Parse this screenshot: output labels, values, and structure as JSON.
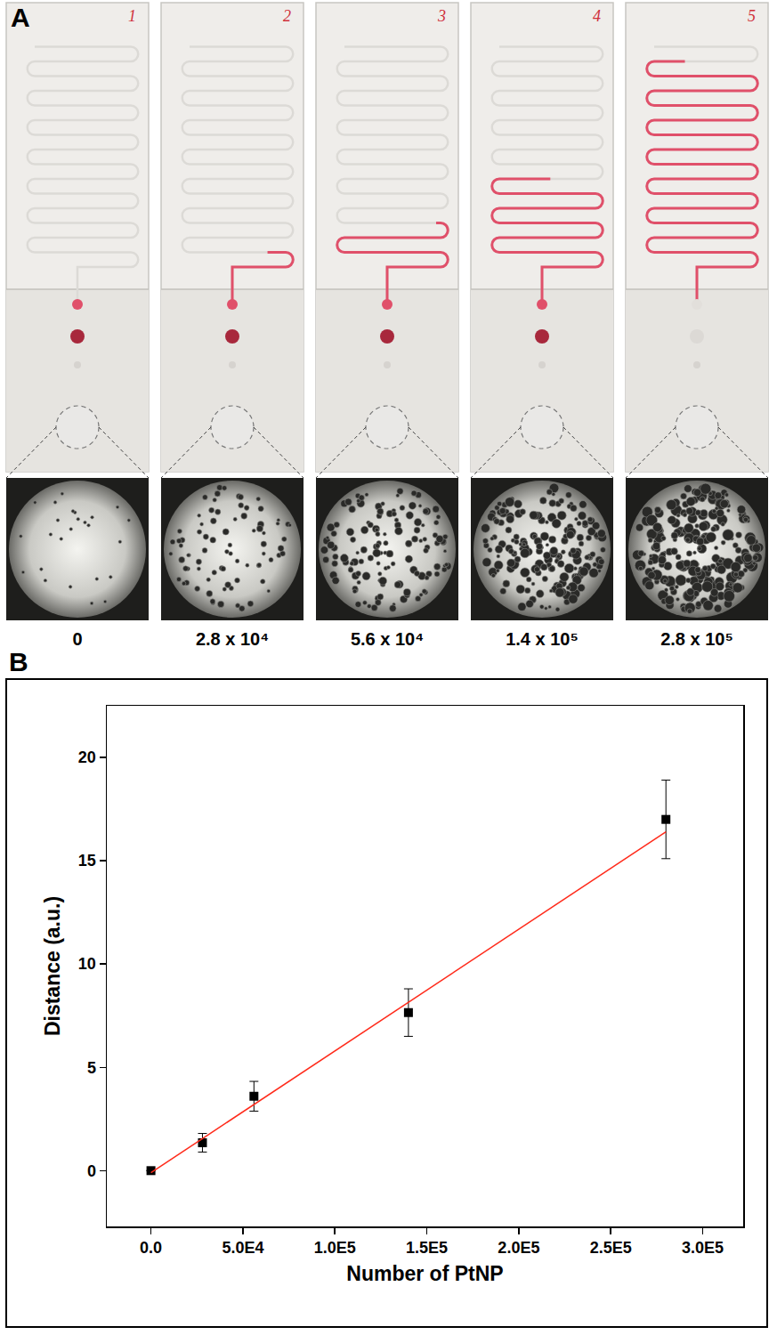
{
  "panel_a": {
    "label": "A",
    "chip_labels": [
      "1",
      "2",
      "3",
      "4",
      "5"
    ],
    "sample_labels": [
      "0",
      "2.8 x 10⁴",
      "5.6 x 10⁴",
      "1.4 x 10⁵",
      "2.8 x 10⁵"
    ]
  },
  "chart_data": {
    "panel_label": "B",
    "type": "scatter",
    "x_label": "Number of PtNP",
    "y_label": "Distance (a.u.)",
    "x": [
      0,
      28000,
      56000,
      140000,
      280000
    ],
    "values": [
      0,
      1.35,
      3.6,
      7.65,
      17
    ],
    "errors": [
      0,
      0.45,
      0.72,
      1.15,
      1.9
    ],
    "marker": "square",
    "color": "#000000",
    "fit": {
      "type": "line",
      "x": [
        0,
        280000
      ],
      "values": [
        -0.1,
        16.4
      ],
      "color": "#ff2a1a",
      "line_style": "solid"
    },
    "xlim": [
      -24000,
      322000
    ],
    "ylim": [
      -2.7,
      22.5
    ],
    "xticks": [
      {
        "value": 0,
        "label": "0.0"
      },
      {
        "value": 50000,
        "label": "5.0E4"
      },
      {
        "value": 100000,
        "label": "1.0E5"
      },
      {
        "value": 150000,
        "label": "1.5E5"
      },
      {
        "value": 200000,
        "label": "2.0E5"
      },
      {
        "value": 250000,
        "label": "2.5E5"
      },
      {
        "value": 300000,
        "label": "3.0E5"
      }
    ],
    "yticks": [
      0,
      5,
      10,
      15,
      20
    ],
    "grid": false
  }
}
